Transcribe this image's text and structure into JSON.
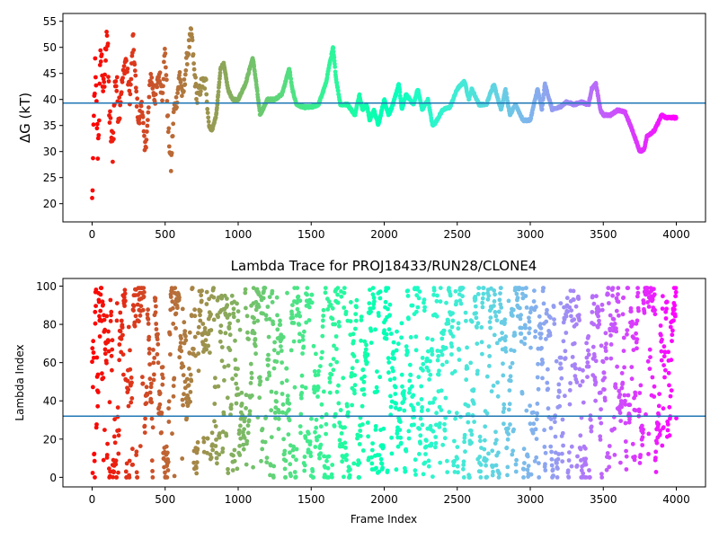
{
  "chart_data": [
    {
      "type": "scatter",
      "title": "",
      "xlabel": "",
      "ylabel": "ΔG (kT)",
      "xlim": [
        -200,
        4200
      ],
      "ylim": [
        16.5,
        56.5
      ],
      "xticks": [
        0,
        500,
        1000,
        1500,
        2000,
        2500,
        3000,
        3500,
        4000
      ],
      "xtick_labels": [
        "0",
        "500",
        "1000",
        "1500",
        "2000",
        "2500",
        "3000",
        "3500",
        "4000"
      ],
      "yticks": [
        20,
        25,
        30,
        35,
        40,
        45,
        50,
        55
      ],
      "ytick_labels": [
        "20",
        "25",
        "30",
        "35",
        "40",
        "45",
        "50",
        "55"
      ],
      "hline": 39.3,
      "hline_color": "#1f77b4",
      "colormap": "rainbow (red at frame 0 → violet at frame 4000)",
      "grid": false,
      "trace_keypoints": {
        "x": [
          0,
          20,
          40,
          60,
          80,
          100,
          120,
          140,
          160,
          180,
          200,
          230,
          260,
          280,
          300,
          320,
          340,
          360,
          380,
          400,
          430,
          460,
          480,
          500,
          520,
          540,
          560,
          580,
          600,
          620,
          650,
          680,
          700,
          720,
          750,
          780,
          800,
          820,
          850,
          880,
          900,
          930,
          960,
          1000,
          1050,
          1100,
          1120,
          1150,
          1200,
          1250,
          1300,
          1350,
          1370,
          1400,
          1450,
          1500,
          1550,
          1600,
          1620,
          1650,
          1670,
          1700,
          1750,
          1800,
          1830,
          1850,
          1880,
          1900,
          1930,
          1960,
          2000,
          2030,
          2060,
          2100,
          2120,
          2150,
          2200,
          2230,
          2260,
          2300,
          2330,
          2350,
          2400,
          2450,
          2500,
          2550,
          2580,
          2600,
          2650,
          2700,
          2750,
          2780,
          2800,
          2830,
          2860,
          2900,
          2950,
          3000,
          3050,
          3080,
          3100,
          3150,
          3200,
          3250,
          3300,
          3350,
          3400,
          3420,
          3450,
          3480,
          3500,
          3550,
          3600,
          3650,
          3700,
          3750,
          3780,
          3800,
          3850,
          3900,
          3930,
          3950,
          4000
        ],
        "y": [
          20,
          46,
          30,
          50,
          40,
          55,
          36,
          30,
          45,
          38,
          42,
          48,
          40,
          52,
          42,
          35,
          40,
          30,
          35,
          45,
          40,
          45,
          41,
          50,
          35,
          27,
          38,
          40,
          45,
          40,
          48,
          53,
          45,
          40,
          43,
          43,
          35,
          34,
          37,
          46,
          47,
          42,
          40,
          40,
          43,
          48,
          44,
          37,
          40,
          40,
          41,
          46,
          42,
          39,
          38.5,
          38.5,
          39,
          43,
          46,
          50,
          44,
          39,
          39,
          37,
          41,
          38,
          39,
          36,
          38,
          35,
          40,
          37,
          39,
          43,
          38,
          41,
          39,
          42,
          38,
          40,
          35,
          35.5,
          38,
          38.5,
          42,
          43.5,
          40,
          42,
          39,
          39,
          43,
          40,
          38,
          42,
          37,
          39,
          36,
          36,
          42,
          38,
          43,
          38,
          38.5,
          39.5,
          39,
          39.5,
          39,
          42,
          43,
          38,
          37,
          37,
          38,
          37.5,
          34,
          30,
          30.5,
          33,
          34,
          37,
          36.5,
          36.5,
          36.5
        ]
      }
    },
    {
      "type": "scatter",
      "title": "Lambda Trace for PROJ18433/RUN28/CLONE4",
      "xlabel": "Frame Index",
      "ylabel": "Lambda Index",
      "xlim": [
        -200,
        4200
      ],
      "ylim": [
        -5,
        104
      ],
      "xticks": [
        0,
        500,
        1000,
        1500,
        2000,
        2500,
        3000,
        3500,
        4000
      ],
      "xtick_labels": [
        "0",
        "500",
        "1000",
        "1500",
        "2000",
        "2500",
        "3000",
        "3500",
        "4000"
      ],
      "yticks": [
        0,
        20,
        40,
        60,
        80,
        100
      ],
      "ytick_labels": [
        "0",
        "20",
        "40",
        "60",
        "80",
        "100"
      ],
      "hline": 32,
      "hline_color": "#1f77b4",
      "colormap": "rainbow (red at frame 0 → violet at frame 4000)",
      "grid": false,
      "point_count": 2200,
      "value_range": [
        0,
        99
      ]
    }
  ]
}
